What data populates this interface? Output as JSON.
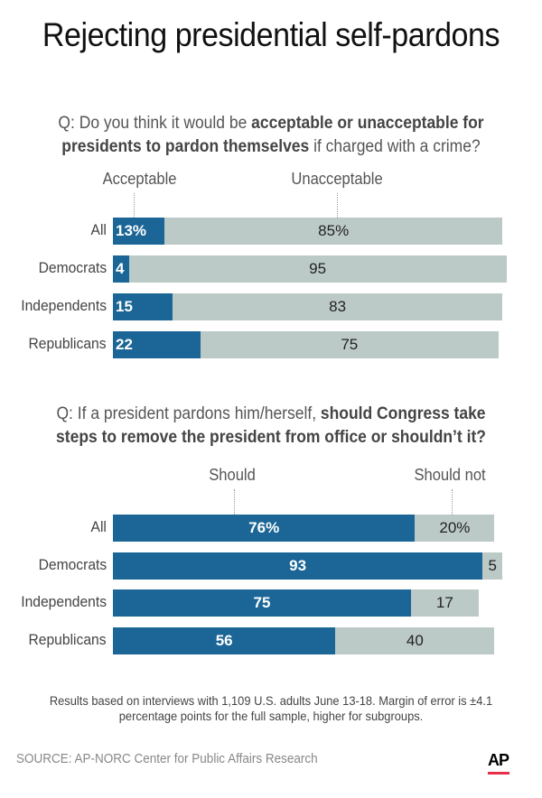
{
  "title": "Rejecting presidential self-pardons",
  "note": "Results based on interviews with 1,109 U.S. adults June 13-18. Margin of error is  ±4.1 percentage points for the full sample, higher for subgroups.",
  "source": "SOURCE: AP-NORC Center for Public Affairs Research",
  "logo": "AP",
  "colors": {
    "primary": "#1b6696",
    "secondary": "#bccac7",
    "logo_underline": "#e8304a"
  },
  "chart_data": [
    {
      "type": "bar",
      "orientation": "horizontal-stacked",
      "question_plain_1": "Q: Do you think it would be ",
      "question_bold": "acceptable or unacceptable for presidents to pardon themselves",
      "question_plain_2": " if charged with a crime?",
      "categories": [
        "All",
        "Democrats",
        "Independents",
        "Republicans"
      ],
      "series": [
        {
          "name": "Acceptable",
          "values": [
            13,
            4,
            15,
            22
          ],
          "labels": [
            "13%",
            "4",
            "15",
            "22"
          ]
        },
        {
          "name": "Unacceptable",
          "values": [
            85,
            95,
            83,
            75
          ],
          "labels": [
            "85%",
            "95",
            "83",
            "75"
          ]
        }
      ],
      "xlim": [
        0,
        100
      ]
    },
    {
      "type": "bar",
      "orientation": "horizontal-stacked",
      "question_plain_1": "Q: If a president pardons him/herself, ",
      "question_bold": "should Congress take steps to remove the president from office or shouldn’t it?",
      "question_plain_2": "",
      "categories": [
        "All",
        "Democrats",
        "Independents",
        "Republicans"
      ],
      "series": [
        {
          "name": "Should",
          "values": [
            76,
            93,
            75,
            56
          ],
          "labels": [
            "76%",
            "93",
            "75",
            "56"
          ]
        },
        {
          "name": "Should not",
          "values": [
            20,
            5,
            17,
            40
          ],
          "labels": [
            "20%",
            "5",
            "17",
            "40"
          ]
        }
      ],
      "xlim": [
        0,
        100
      ]
    }
  ]
}
